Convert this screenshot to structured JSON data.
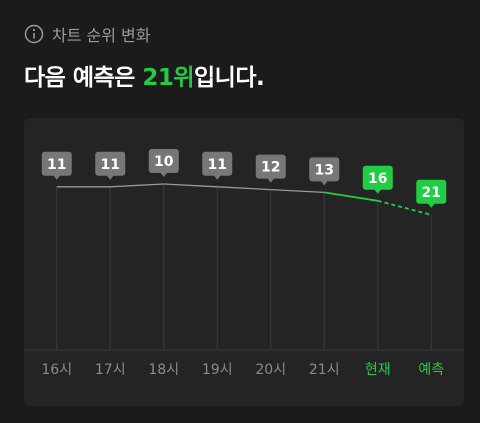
{
  "header": {
    "subtitle": "차트 순위 변화",
    "title_before": "다음 예측은 ",
    "title_highlight": "21위",
    "title_after": "입니다."
  },
  "chart_data": {
    "type": "line",
    "categories": [
      "16시",
      "17시",
      "18시",
      "19시",
      "20시",
      "21시",
      "현재",
      "예측"
    ],
    "values": [
      11,
      11,
      10,
      11,
      12,
      13,
      16,
      21
    ],
    "ylim": [
      0,
      70
    ],
    "inverted": true,
    "color": "#777777",
    "line_color": "#9a9a9a",
    "highlight_color": "#22cc44",
    "highlight_from": 6,
    "dashed_from": 7
  }
}
